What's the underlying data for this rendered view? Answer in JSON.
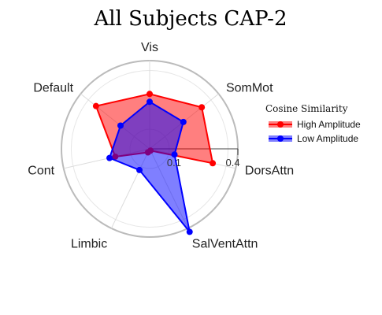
{
  "chart_data": {
    "type": "radar",
    "title": "All Subjects CAP-2",
    "axes": [
      "Vis",
      "SomMot",
      "DorsAttn",
      "SalVentAttn",
      "Limbic",
      "Cont",
      "Default"
    ],
    "radial_range": [
      0,
      0.45
    ],
    "radial_ticks": [
      0.1,
      0.4
    ],
    "radial_tick_labels": [
      "0.1",
      "0.4"
    ],
    "legend_title": "Cosine Similarity",
    "legend_position": "right",
    "series": [
      {
        "name": "High Amplitude",
        "color": "#ff0000",
        "values": [
          0.28,
          0.34,
          0.33,
          0.01,
          0.02,
          0.18,
          0.35
        ]
      },
      {
        "name": "Low Amplitude",
        "color": "#0000ff",
        "values": [
          0.24,
          0.22,
          0.13,
          0.47,
          0.12,
          0.21,
          0.19
        ]
      }
    ]
  }
}
